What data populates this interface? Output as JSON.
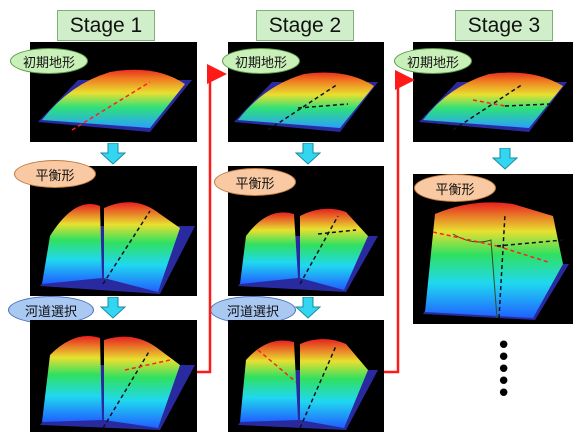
{
  "stages": [
    {
      "label": "Stage 1"
    },
    {
      "label": "Stage 2"
    },
    {
      "label": "Stage 3"
    }
  ],
  "tags": {
    "initial": "初期地形",
    "equilibrium": "平衡形",
    "river": "河道選択"
  },
  "continuation": "⋮",
  "colors": {
    "stage_label_bg": "#cfeec9",
    "initial_tag_bg": "#c9f0b9",
    "equilibrium_tag_bg": "#f8c9a2",
    "river_tag_bg": "#a9c8f2",
    "down_arrow": "#33d6f0",
    "transfer_arrow": "#ff1a1a"
  }
}
